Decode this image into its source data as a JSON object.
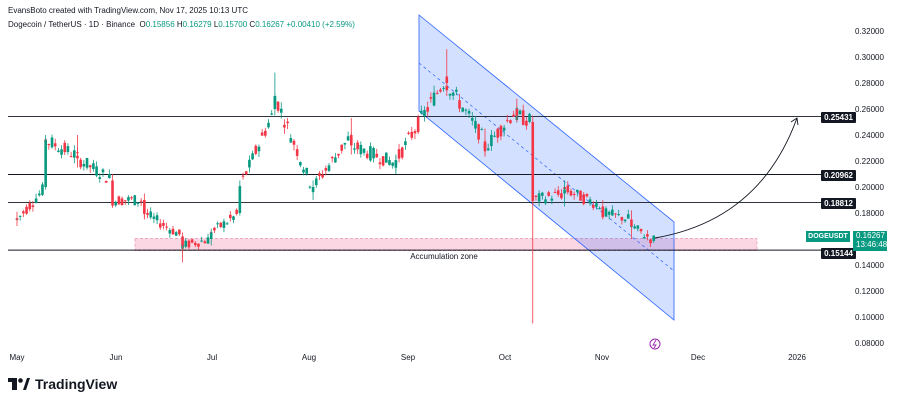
{
  "header": {
    "creator": "EvansBoto created with TradingView.com, Nov 17, 2025 10:13 UTC",
    "symbol": "Dogecoin / TetherUS · 1D · Binance",
    "open_label": "O",
    "open": "0.15856",
    "high_label": "H",
    "high": "0.16279",
    "low_label": "L",
    "low": "0.15700",
    "close_label": "C",
    "close": "0.16267",
    "change": "+0.00410 (+2.59%)"
  },
  "chart_data": {
    "type": "candlestick",
    "ylim": [
      0.08,
      0.33
    ],
    "y_ticks": [
      "0.32000",
      "0.30000",
      "0.28000",
      "0.26000",
      "0.24000",
      "0.22000",
      "0.20000",
      "0.18000",
      "0.16000",
      "0.14000",
      "0.12000",
      "0.10000",
      "0.08000"
    ],
    "x_ticks": [
      "May",
      "Jun",
      "Jul",
      "Aug",
      "Sep",
      "Oct",
      "Nov",
      "Dec",
      "2026"
    ],
    "levels": [
      "0.25431",
      "0.20962",
      "0.18812",
      "0.15144"
    ],
    "current_price": "0.16267",
    "countdown": "13:46:48",
    "ticker": "DOGEUSDT",
    "zone_label": "Accumulation zone",
    "series_approx": [
      {
        "date": "2025-05-01",
        "open": 0.176,
        "high": 0.181,
        "low": 0.17,
        "close": 0.175
      },
      {
        "date": "2025-05-10",
        "open": 0.2,
        "high": 0.24,
        "low": 0.198,
        "close": 0.236
      },
      {
        "date": "2025-05-20",
        "open": 0.224,
        "high": 0.24,
        "low": 0.215,
        "close": 0.222
      },
      {
        "date": "2025-05-31",
        "open": 0.205,
        "high": 0.21,
        "low": 0.185,
        "close": 0.19
      },
      {
        "date": "2025-06-10",
        "open": 0.19,
        "high": 0.195,
        "low": 0.175,
        "close": 0.18
      },
      {
        "date": "2025-06-22",
        "open": 0.162,
        "high": 0.165,
        "low": 0.142,
        "close": 0.155
      },
      {
        "date": "2025-07-01",
        "open": 0.16,
        "high": 0.168,
        "low": 0.155,
        "close": 0.165
      },
      {
        "date": "2025-07-10",
        "open": 0.18,
        "high": 0.205,
        "low": 0.178,
        "close": 0.2
      },
      {
        "date": "2025-07-21",
        "open": 0.26,
        "high": 0.288,
        "low": 0.255,
        "close": 0.27
      },
      {
        "date": "2025-08-02",
        "open": 0.198,
        "high": 0.205,
        "low": 0.19,
        "close": 0.2
      },
      {
        "date": "2025-08-14",
        "open": 0.24,
        "high": 0.253,
        "low": 0.225,
        "close": 0.232
      },
      {
        "date": "2025-08-28",
        "open": 0.218,
        "high": 0.225,
        "low": 0.21,
        "close": 0.22
      },
      {
        "date": "2025-09-13",
        "open": 0.285,
        "high": 0.306,
        "low": 0.27,
        "close": 0.28
      },
      {
        "date": "2025-09-25",
        "open": 0.235,
        "high": 0.245,
        "low": 0.225,
        "close": 0.23
      },
      {
        "date": "2025-10-05",
        "open": 0.26,
        "high": 0.268,
        "low": 0.25,
        "close": 0.255
      },
      {
        "date": "2025-10-10",
        "open": 0.25,
        "high": 0.255,
        "low": 0.095,
        "close": 0.19
      },
      {
        "date": "2025-10-20",
        "open": 0.195,
        "high": 0.205,
        "low": 0.185,
        "close": 0.198
      },
      {
        "date": "2025-11-01",
        "open": 0.185,
        "high": 0.19,
        "low": 0.175,
        "close": 0.18
      },
      {
        "date": "2025-11-10",
        "open": 0.175,
        "high": 0.182,
        "low": 0.16,
        "close": 0.17
      },
      {
        "date": "2025-11-17",
        "open": 0.15856,
        "high": 0.16279,
        "low": 0.157,
        "close": 0.16267
      }
    ]
  },
  "colors": {
    "up": "#089981",
    "down": "#f23645",
    "channel": "#2962ff",
    "zone": "#f8bbd0",
    "text": "#131722"
  },
  "logo": {
    "text": "TradingView"
  }
}
